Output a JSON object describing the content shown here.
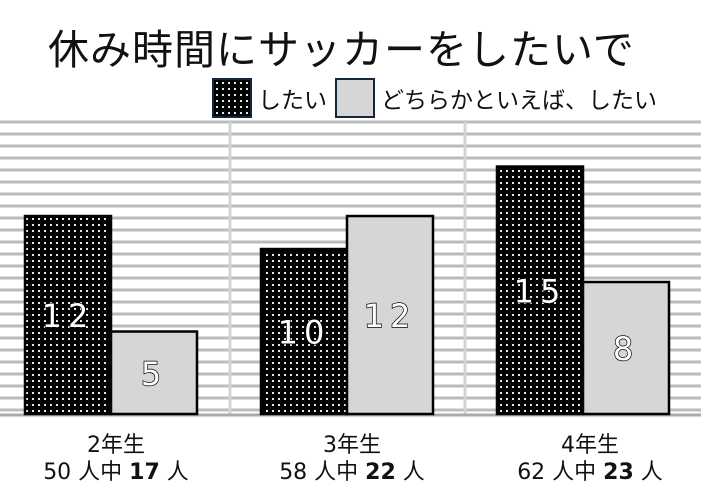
{
  "chart_data": {
    "type": "bar",
    "title": "休み時間にサッカーをしたいで",
    "categories": [
      "2年生",
      "3年生",
      "4年生"
    ],
    "category_notes": [
      {
        "pre": "50 人中 ",
        "count": "17",
        "post": " 人"
      },
      {
        "pre": "58 人中 ",
        "count": "22",
        "post": " 人"
      },
      {
        "pre": "62 人中 ",
        "count": "23",
        "post": " 人"
      }
    ],
    "series": [
      {
        "name": "したい",
        "values": [
          12,
          10,
          15
        ],
        "color": "#000000"
      },
      {
        "name": "どちらかといえば、したい",
        "values": [
          5,
          12,
          8
        ],
        "color": "#d6d6d6"
      }
    ],
    "ylim": [
      0,
      17.7
    ],
    "grid": true,
    "legend_position": "top-right"
  }
}
